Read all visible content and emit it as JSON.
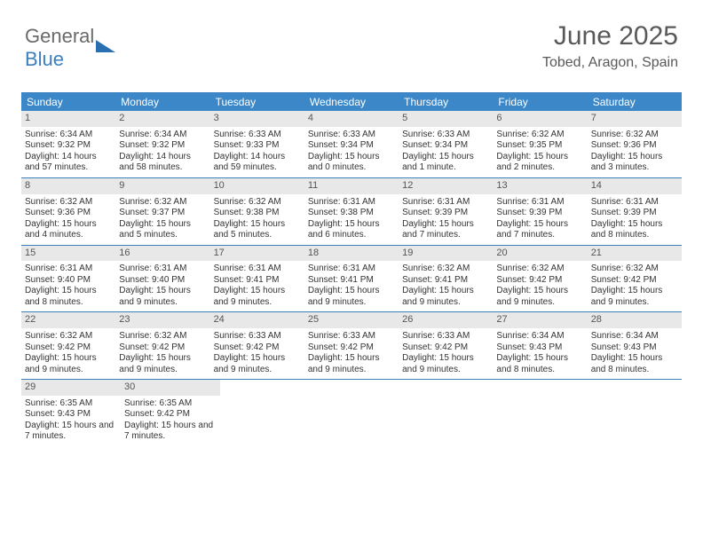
{
  "logo": {
    "text1": "General",
    "text2": "Blue"
  },
  "title": "June 2025",
  "location": "Tobed, Aragon, Spain",
  "colors": {
    "header_bg": "#3b87c8",
    "header_text": "#ffffff",
    "daynum_bg": "#e8e8e8",
    "border": "#3b7fbf",
    "title_color": "#595959",
    "logo_gray": "#6a6a6a",
    "logo_blue": "#3b7fbf"
  },
  "weekdays": [
    "Sunday",
    "Monday",
    "Tuesday",
    "Wednesday",
    "Thursday",
    "Friday",
    "Saturday"
  ],
  "weeks": [
    [
      {
        "n": "1",
        "sr": "6:34 AM",
        "ss": "9:32 PM",
        "dl": "14 hours and 57 minutes."
      },
      {
        "n": "2",
        "sr": "6:34 AM",
        "ss": "9:32 PM",
        "dl": "14 hours and 58 minutes."
      },
      {
        "n": "3",
        "sr": "6:33 AM",
        "ss": "9:33 PM",
        "dl": "14 hours and 59 minutes."
      },
      {
        "n": "4",
        "sr": "6:33 AM",
        "ss": "9:34 PM",
        "dl": "15 hours and 0 minutes."
      },
      {
        "n": "5",
        "sr": "6:33 AM",
        "ss": "9:34 PM",
        "dl": "15 hours and 1 minute."
      },
      {
        "n": "6",
        "sr": "6:32 AM",
        "ss": "9:35 PM",
        "dl": "15 hours and 2 minutes."
      },
      {
        "n": "7",
        "sr": "6:32 AM",
        "ss": "9:36 PM",
        "dl": "15 hours and 3 minutes."
      }
    ],
    [
      {
        "n": "8",
        "sr": "6:32 AM",
        "ss": "9:36 PM",
        "dl": "15 hours and 4 minutes."
      },
      {
        "n": "9",
        "sr": "6:32 AM",
        "ss": "9:37 PM",
        "dl": "15 hours and 5 minutes."
      },
      {
        "n": "10",
        "sr": "6:32 AM",
        "ss": "9:38 PM",
        "dl": "15 hours and 5 minutes."
      },
      {
        "n": "11",
        "sr": "6:31 AM",
        "ss": "9:38 PM",
        "dl": "15 hours and 6 minutes."
      },
      {
        "n": "12",
        "sr": "6:31 AM",
        "ss": "9:39 PM",
        "dl": "15 hours and 7 minutes."
      },
      {
        "n": "13",
        "sr": "6:31 AM",
        "ss": "9:39 PM",
        "dl": "15 hours and 7 minutes."
      },
      {
        "n": "14",
        "sr": "6:31 AM",
        "ss": "9:39 PM",
        "dl": "15 hours and 8 minutes."
      }
    ],
    [
      {
        "n": "15",
        "sr": "6:31 AM",
        "ss": "9:40 PM",
        "dl": "15 hours and 8 minutes."
      },
      {
        "n": "16",
        "sr": "6:31 AM",
        "ss": "9:40 PM",
        "dl": "15 hours and 9 minutes."
      },
      {
        "n": "17",
        "sr": "6:31 AM",
        "ss": "9:41 PM",
        "dl": "15 hours and 9 minutes."
      },
      {
        "n": "18",
        "sr": "6:31 AM",
        "ss": "9:41 PM",
        "dl": "15 hours and 9 minutes."
      },
      {
        "n": "19",
        "sr": "6:32 AM",
        "ss": "9:41 PM",
        "dl": "15 hours and 9 minutes."
      },
      {
        "n": "20",
        "sr": "6:32 AM",
        "ss": "9:42 PM",
        "dl": "15 hours and 9 minutes."
      },
      {
        "n": "21",
        "sr": "6:32 AM",
        "ss": "9:42 PM",
        "dl": "15 hours and 9 minutes."
      }
    ],
    [
      {
        "n": "22",
        "sr": "6:32 AM",
        "ss": "9:42 PM",
        "dl": "15 hours and 9 minutes."
      },
      {
        "n": "23",
        "sr": "6:32 AM",
        "ss": "9:42 PM",
        "dl": "15 hours and 9 minutes."
      },
      {
        "n": "24",
        "sr": "6:33 AM",
        "ss": "9:42 PM",
        "dl": "15 hours and 9 minutes."
      },
      {
        "n": "25",
        "sr": "6:33 AM",
        "ss": "9:42 PM",
        "dl": "15 hours and 9 minutes."
      },
      {
        "n": "26",
        "sr": "6:33 AM",
        "ss": "9:42 PM",
        "dl": "15 hours and 9 minutes."
      },
      {
        "n": "27",
        "sr": "6:34 AM",
        "ss": "9:43 PM",
        "dl": "15 hours and 8 minutes."
      },
      {
        "n": "28",
        "sr": "6:34 AM",
        "ss": "9:43 PM",
        "dl": "15 hours and 8 minutes."
      }
    ],
    [
      {
        "n": "29",
        "sr": "6:35 AM",
        "ss": "9:43 PM",
        "dl": "15 hours and 7 minutes."
      },
      {
        "n": "30",
        "sr": "6:35 AM",
        "ss": "9:42 PM",
        "dl": "15 hours and 7 minutes."
      },
      null,
      null,
      null,
      null,
      null
    ]
  ],
  "labels": {
    "sunrise": "Sunrise:",
    "sunset": "Sunset:",
    "daylight": "Daylight:"
  }
}
